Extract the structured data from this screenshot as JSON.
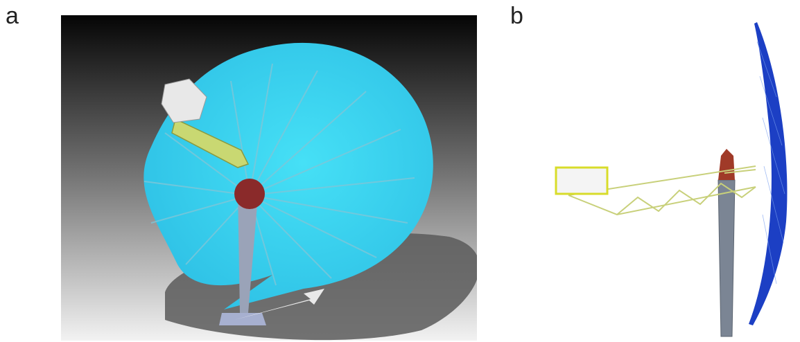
{
  "figure": {
    "panels": [
      {
        "label": "a"
      },
      {
        "label": "b"
      }
    ],
    "colors": {
      "dish_a": "#39d4f0",
      "dish_b": "#1c3fc4",
      "truss": "#d7e08a",
      "pole": "#8f9aa8",
      "receiver_b": "#e6e05a"
    }
  }
}
